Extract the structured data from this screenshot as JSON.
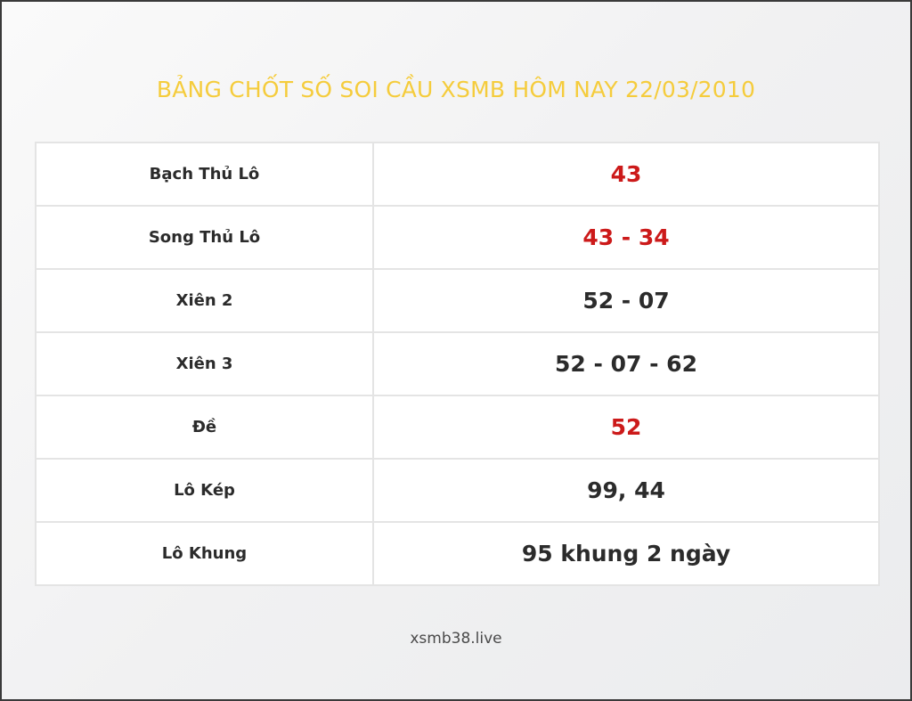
{
  "title": "BẢNG CHỐT SỐ SOI CẦU XSMB HÔM NAY 22/03/2010",
  "colors": {
    "title": "#f5cc3c",
    "highlight": "#cc1a1a",
    "text": "#2b2b2b"
  },
  "rows": [
    {
      "label": "Bạch Thủ Lô",
      "value": "43",
      "highlight": true
    },
    {
      "label": "Song Thủ Lô",
      "value": "43 - 34",
      "highlight": true
    },
    {
      "label": "Xiên 2",
      "value": "52 - 07",
      "highlight": false
    },
    {
      "label": "Xiên 3",
      "value": "52 - 07 - 62",
      "highlight": false
    },
    {
      "label": "Đề",
      "value": "52",
      "highlight": true
    },
    {
      "label": "Lô Kép",
      "value": "99, 44",
      "highlight": false
    },
    {
      "label": "Lô Khung",
      "value": "95 khung 2 ngày",
      "highlight": false
    }
  ],
  "footer": "xsmb38.live"
}
